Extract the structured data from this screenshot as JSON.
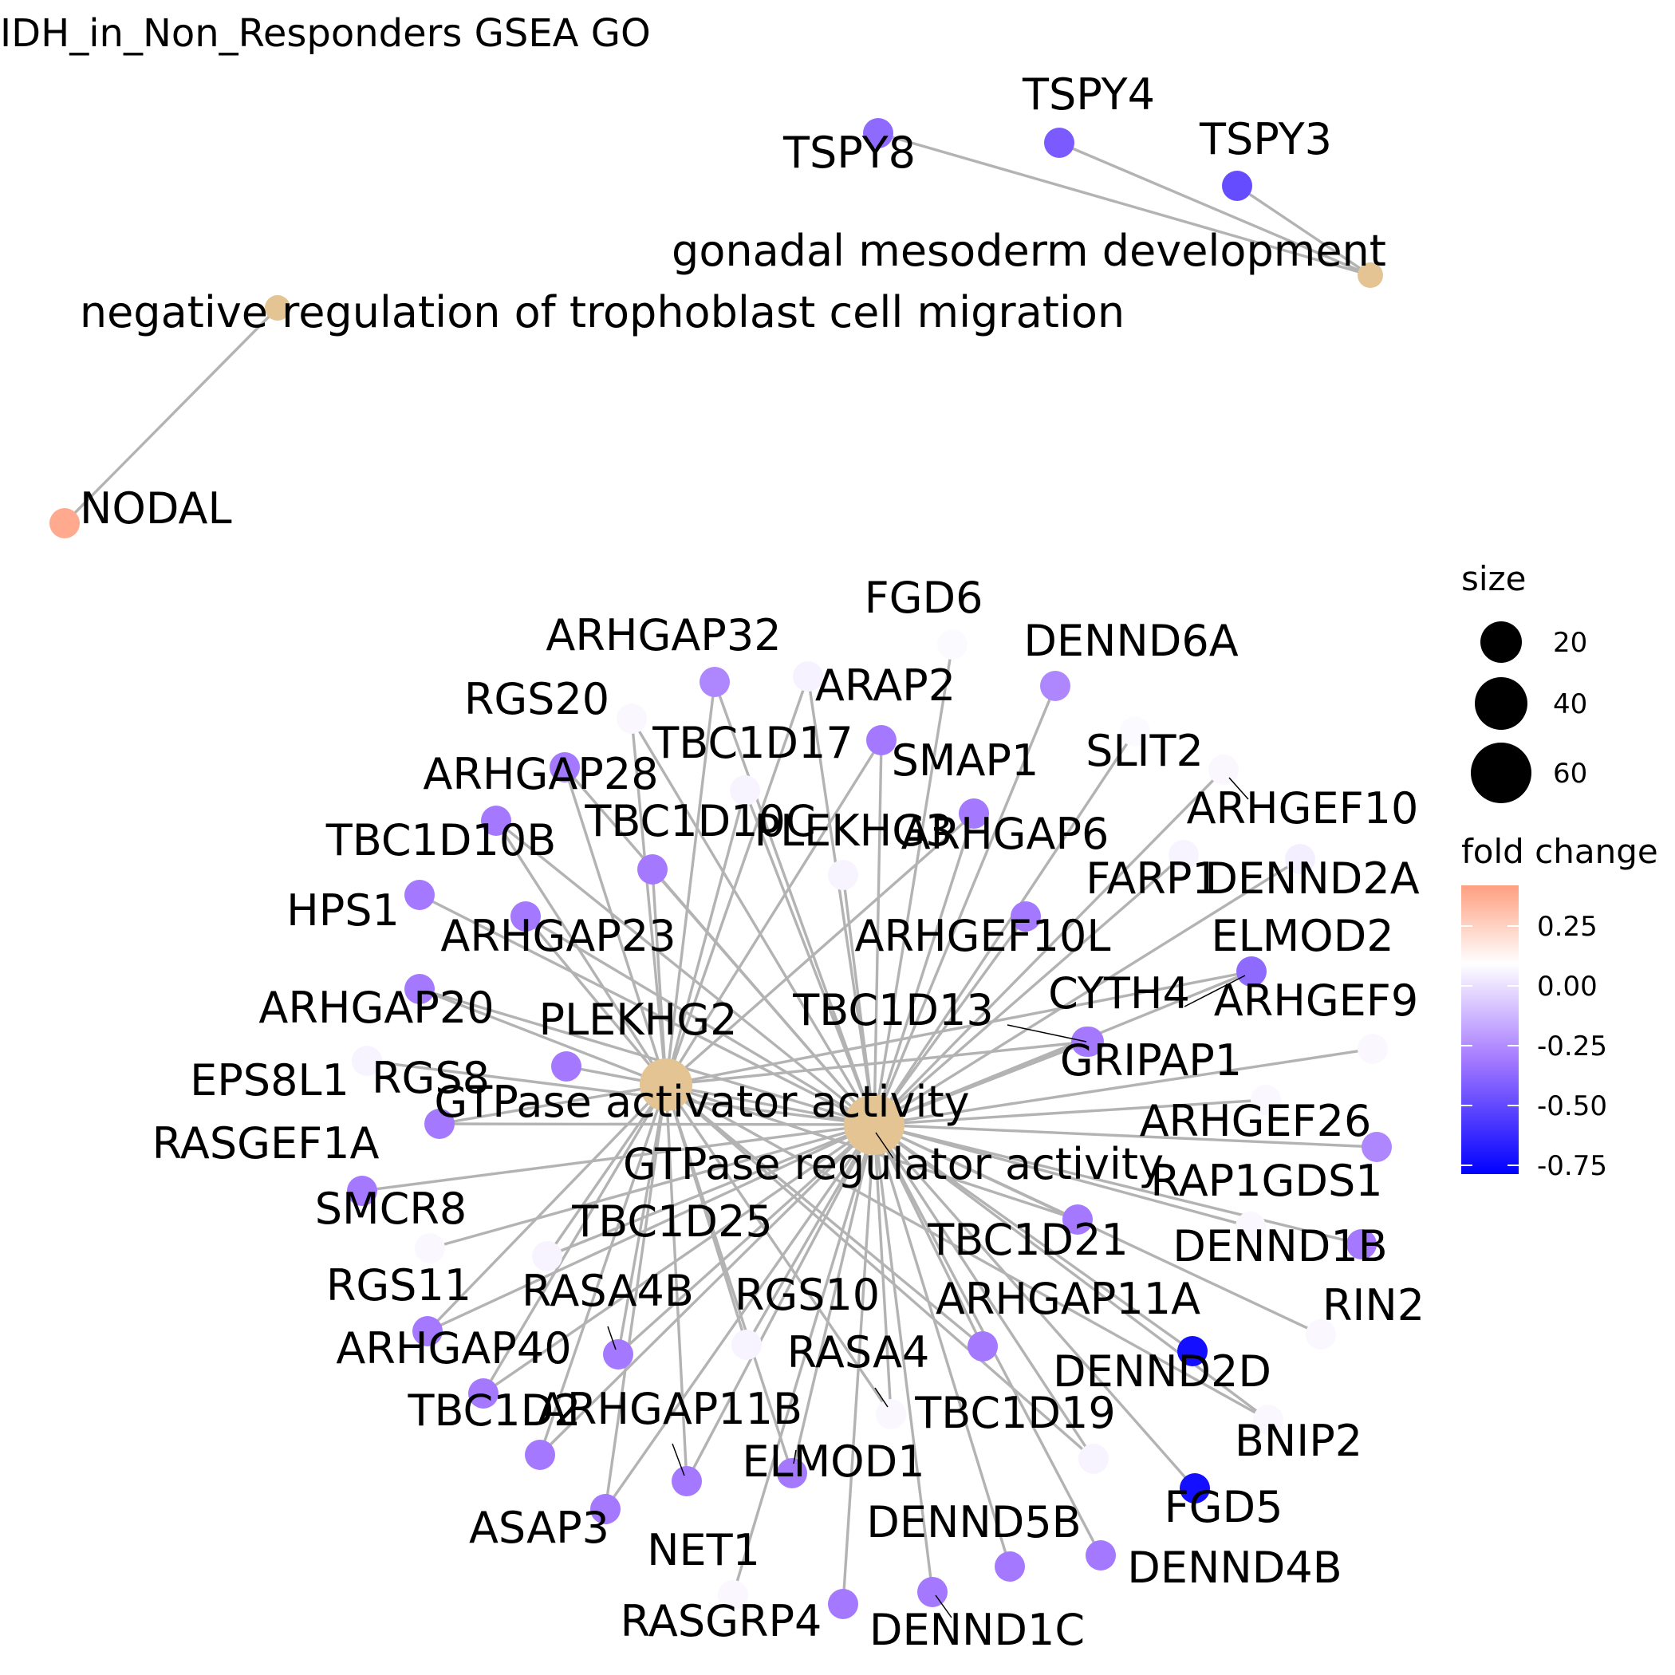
{
  "title": "IDH_in_Non_Responders GSEA GO",
  "legend": {
    "size_title": "size",
    "size_values": [
      "20",
      "40",
      "60"
    ],
    "color_title": "fold change",
    "color_ticks": [
      "0.25",
      "0.00",
      "-0.25",
      "-0.50",
      "-0.75"
    ],
    "color_low": "#0000ff",
    "color_mid": "#ffffff",
    "color_high": "#ff9f80"
  },
  "colors": {
    "category": "#e5c494",
    "edge": "#b3b3b3"
  },
  "categories": [
    {
      "id": "gtpase_regulator",
      "label": "GTPase regulator activity"
    },
    {
      "id": "gtpase_activator",
      "label": "GTPase activator activity"
    },
    {
      "id": "gonadal",
      "label": "gonadal mesoderm development"
    },
    {
      "id": "trophoblast",
      "label": "negative regulation of trophoblast cell migration"
    }
  ],
  "genes": [
    {
      "label": "TSPY8",
      "fc": -0.55,
      "cats": [
        "gonadal"
      ]
    },
    {
      "label": "TSPY4",
      "fc": -0.6,
      "cats": [
        "gonadal"
      ]
    },
    {
      "label": "TSPY3",
      "fc": -0.65,
      "cats": [
        "gonadal"
      ]
    },
    {
      "label": "NODAL",
      "fc": 0.4,
      "cats": [
        "trophoblast"
      ]
    },
    {
      "label": "FGD6",
      "fc": -0.02,
      "cats": [
        "gtpase_regulator"
      ]
    },
    {
      "label": "ARHGAP32",
      "fc": -0.45,
      "cats": [
        "gtpase_regulator",
        "gtpase_activator"
      ]
    },
    {
      "label": "DENND6A",
      "fc": -0.45,
      "cats": [
        "gtpase_regulator"
      ]
    },
    {
      "label": "ARAP2",
      "fc": -0.05,
      "cats": [
        "gtpase_regulator",
        "gtpase_activator"
      ]
    },
    {
      "label": "RGS20",
      "fc": -0.03,
      "cats": [
        "gtpase_regulator",
        "gtpase_activator"
      ]
    },
    {
      "label": "TBC1D17",
      "fc": -0.04,
      "cats": [
        "gtpase_regulator",
        "gtpase_activator"
      ]
    },
    {
      "label": "SMAP1",
      "fc": -0.5,
      "cats": [
        "gtpase_regulator",
        "gtpase_activator"
      ]
    },
    {
      "label": "SLIT2",
      "fc": -0.02,
      "cats": [
        "gtpase_regulator"
      ]
    },
    {
      "label": "ARHGAP28",
      "fc": -0.5,
      "cats": [
        "gtpase_regulator",
        "gtpase_activator"
      ]
    },
    {
      "label": "ARHGEF10",
      "fc": -0.03,
      "cats": [
        "gtpase_regulator"
      ]
    },
    {
      "label": "TBC1D10B",
      "fc": -0.5,
      "cats": [
        "gtpase_regulator",
        "gtpase_activator"
      ]
    },
    {
      "label": "TBC1D10C",
      "fc": -0.5,
      "cats": [
        "gtpase_regulator",
        "gtpase_activator"
      ]
    },
    {
      "label": "PLEKHG3",
      "fc": -0.04,
      "cats": [
        "gtpase_regulator"
      ]
    },
    {
      "label": "ARHGAP6",
      "fc": -0.5,
      "cats": [
        "gtpase_regulator",
        "gtpase_activator"
      ]
    },
    {
      "label": "FARP1",
      "fc": -0.04,
      "cats": [
        "gtpase_regulator"
      ]
    },
    {
      "label": "DENND2A",
      "fc": -0.06,
      "cats": [
        "gtpase_regulator"
      ]
    },
    {
      "label": "HPS1",
      "fc": -0.5,
      "cats": [
        "gtpase_regulator"
      ]
    },
    {
      "label": "ARHGAP23",
      "fc": -0.5,
      "cats": [
        "gtpase_regulator",
        "gtpase_activator"
      ]
    },
    {
      "label": "ARHGEF10L",
      "fc": -0.5,
      "cats": [
        "gtpase_regulator"
      ]
    },
    {
      "label": "ELMOD2",
      "fc": -0.55,
      "cats": [
        "gtpase_regulator",
        "gtpase_activator"
      ]
    },
    {
      "label": "TBC1D13",
      "fc": -0.5,
      "cats": [
        "gtpase_regulator",
        "gtpase_activator"
      ]
    },
    {
      "label": "CYTH4",
      "fc": -0.5,
      "cats": [
        "gtpase_regulator"
      ]
    },
    {
      "label": "ARHGAP20",
      "fc": -0.5,
      "cats": [
        "gtpase_regulator",
        "gtpase_activator"
      ]
    },
    {
      "label": "PLEKHG2",
      "fc": -0.5,
      "cats": [
        "gtpase_regulator"
      ]
    },
    {
      "label": "ARHGEF9",
      "fc": -0.03,
      "cats": [
        "gtpase_regulator"
      ]
    },
    {
      "label": "EPS8L1",
      "fc": -0.04,
      "cats": [
        "gtpase_regulator"
      ]
    },
    {
      "label": "RGS8",
      "fc": -0.5,
      "cats": [
        "gtpase_regulator",
        "gtpase_activator"
      ]
    },
    {
      "label": "GRIPAP1",
      "fc": -0.03,
      "cats": [
        "gtpase_regulator"
      ]
    },
    {
      "label": "ARHGEF26",
      "fc": -0.45,
      "cats": [
        "gtpase_regulator"
      ]
    },
    {
      "label": "RASGEF1A",
      "fc": -0.5,
      "cats": [
        "gtpase_regulator"
      ]
    },
    {
      "label": "RAP1GDS1",
      "fc": -0.03,
      "cats": [
        "gtpase_regulator"
      ]
    },
    {
      "label": "SMCR8",
      "fc": -0.03,
      "cats": [
        "gtpase_regulator"
      ]
    },
    {
      "label": "TBC1D25",
      "fc": -0.04,
      "cats": [
        "gtpase_regulator",
        "gtpase_activator"
      ]
    },
    {
      "label": "TBC1D21",
      "fc": -0.5,
      "cats": [
        "gtpase_regulator",
        "gtpase_activator"
      ]
    },
    {
      "label": "DENND1B",
      "fc": -0.5,
      "cats": [
        "gtpase_regulator"
      ]
    },
    {
      "label": "RGS11",
      "fc": -0.5,
      "cats": [
        "gtpase_regulator",
        "gtpase_activator"
      ]
    },
    {
      "label": "RASA4B",
      "fc": -0.5,
      "cats": [
        "gtpase_regulator",
        "gtpase_activator"
      ]
    },
    {
      "label": "RGS10",
      "fc": -0.04,
      "cats": [
        "gtpase_regulator",
        "gtpase_activator"
      ]
    },
    {
      "label": "ARHGAP11A",
      "fc": -0.5,
      "cats": [
        "gtpase_regulator",
        "gtpase_activator"
      ]
    },
    {
      "label": "RIN2",
      "fc": -0.03,
      "cats": [
        "gtpase_regulator"
      ]
    },
    {
      "label": "ARHGAP40",
      "fc": -0.5,
      "cats": [
        "gtpase_regulator",
        "gtpase_activator"
      ]
    },
    {
      "label": "RASA4",
      "fc": -0.03,
      "cats": [
        "gtpase_regulator",
        "gtpase_activator"
      ]
    },
    {
      "label": "DENND2D",
      "fc": -0.85,
      "cats": [
        "gtpase_regulator"
      ]
    },
    {
      "label": "TBC1D2",
      "fc": -0.5,
      "cats": [
        "gtpase_regulator",
        "gtpase_activator"
      ]
    },
    {
      "label": "ARHGAP11B",
      "fc": -0.5,
      "cats": [
        "gtpase_regulator",
        "gtpase_activator"
      ]
    },
    {
      "label": "TBC1D19",
      "fc": -0.04,
      "cats": [
        "gtpase_regulator",
        "gtpase_activator"
      ]
    },
    {
      "label": "BNIP2",
      "fc": -0.03,
      "cats": [
        "gtpase_regulator",
        "gtpase_activator"
      ]
    },
    {
      "label": "ELMOD1",
      "fc": -0.5,
      "cats": [
        "gtpase_regulator",
        "gtpase_activator"
      ]
    },
    {
      "label": "FGD5",
      "fc": -0.85,
      "cats": [
        "gtpase_regulator"
      ]
    },
    {
      "label": "ASAP3",
      "fc": -0.5,
      "cats": [
        "gtpase_regulator",
        "gtpase_activator"
      ]
    },
    {
      "label": "DENND5B",
      "fc": -0.5,
      "cats": [
        "gtpase_regulator"
      ]
    },
    {
      "label": "DENND4B",
      "fc": -0.5,
      "cats": [
        "gtpase_regulator"
      ]
    },
    {
      "label": "NET1",
      "fc": -0.03,
      "cats": [
        "gtpase_regulator"
      ]
    },
    {
      "label": "RASGRP4",
      "fc": -0.5,
      "cats": [
        "gtpase_regulator"
      ]
    },
    {
      "label": "DENND1C",
      "fc": -0.5,
      "cats": [
        "gtpase_regulator"
      ]
    }
  ]
}
